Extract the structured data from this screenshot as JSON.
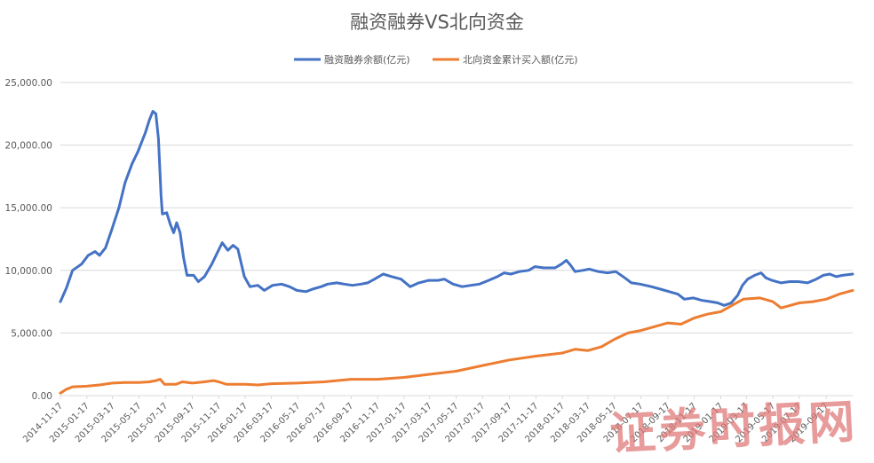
{
  "watermark": "证券时报网",
  "chart_data": {
    "type": "line",
    "title": "融资融券VS北向资金",
    "legend_position": "top",
    "grid": true,
    "ylim": [
      0,
      25000
    ],
    "yticks": [
      "0.00",
      "5,000.00",
      "10,000.00",
      "15,000.00",
      "20,000.00",
      "25,000.00"
    ],
    "xlim": [
      "2014-11-17",
      "2019-11-17"
    ],
    "xticks": [
      "2014-11-17",
      "2015-01-17",
      "2015-03-17",
      "2015-05-17",
      "2015-07-17",
      "2015-09-17",
      "2015-11-17",
      "2016-01-17",
      "2016-03-17",
      "2016-05-17",
      "2016-07-17",
      "2016-09-17",
      "2016-11-17",
      "2017-01-17",
      "2017-03-17",
      "2017-05-17",
      "2017-07-17",
      "2017-09-17",
      "2017-11-17",
      "2018-01-17",
      "2018-03-17",
      "2018-05-17",
      "2018-07-17",
      "2018-09-17",
      "2018-11-17",
      "2019-01-17",
      "2019-03-17",
      "2019-05-17",
      "2019-07-17",
      "2019-09-17"
    ],
    "series": [
      {
        "name": "融资融券余额(亿元)",
        "color": "#4472c4",
        "points": [
          [
            "2014-11-17",
            7500
          ],
          [
            "2014-12-01",
            8600
          ],
          [
            "2014-12-15",
            10000
          ],
          [
            "2015-01-05",
            10500
          ],
          [
            "2015-01-20",
            11200
          ],
          [
            "2015-02-05",
            11500
          ],
          [
            "2015-02-15",
            11200
          ],
          [
            "2015-03-01",
            11800
          ],
          [
            "2015-03-15",
            13200
          ],
          [
            "2015-04-01",
            15000
          ],
          [
            "2015-04-15",
            17000
          ],
          [
            "2015-05-01",
            18500
          ],
          [
            "2015-05-15",
            19500
          ],
          [
            "2015-06-01",
            21000
          ],
          [
            "2015-06-10",
            22000
          ],
          [
            "2015-06-18",
            22700
          ],
          [
            "2015-06-25",
            22500
          ],
          [
            "2015-07-01",
            20500
          ],
          [
            "2015-07-07",
            16000
          ],
          [
            "2015-07-10",
            14500
          ],
          [
            "2015-07-20",
            14600
          ],
          [
            "2015-07-28",
            13700
          ],
          [
            "2015-08-05",
            13000
          ],
          [
            "2015-08-12",
            13800
          ],
          [
            "2015-08-20",
            13000
          ],
          [
            "2015-08-28",
            11000
          ],
          [
            "2015-09-05",
            9600
          ],
          [
            "2015-09-20",
            9600
          ],
          [
            "2015-10-01",
            9100
          ],
          [
            "2015-10-15",
            9500
          ],
          [
            "2015-11-01",
            10500
          ],
          [
            "2015-11-15",
            11500
          ],
          [
            "2015-11-25",
            12200
          ],
          [
            "2015-12-08",
            11600
          ],
          [
            "2015-12-20",
            12000
          ],
          [
            "2015-12-31",
            11700
          ],
          [
            "2016-01-15",
            9500
          ],
          [
            "2016-01-28",
            8700
          ],
          [
            "2016-02-15",
            8800
          ],
          [
            "2016-03-01",
            8400
          ],
          [
            "2016-03-20",
            8800
          ],
          [
            "2016-04-10",
            8900
          ],
          [
            "2016-04-28",
            8700
          ],
          [
            "2016-05-15",
            8400
          ],
          [
            "2016-06-05",
            8300
          ],
          [
            "2016-06-20",
            8500
          ],
          [
            "2016-07-10",
            8700
          ],
          [
            "2016-07-25",
            8900
          ],
          [
            "2016-08-15",
            9000
          ],
          [
            "2016-09-01",
            8900
          ],
          [
            "2016-09-20",
            8800
          ],
          [
            "2016-10-10",
            8900
          ],
          [
            "2016-10-25",
            9000
          ],
          [
            "2016-11-10",
            9300
          ],
          [
            "2016-11-30",
            9700
          ],
          [
            "2016-12-20",
            9500
          ],
          [
            "2017-01-10",
            9300
          ],
          [
            "2017-01-31",
            8700
          ],
          [
            "2017-02-20",
            9000
          ],
          [
            "2017-03-15",
            9200
          ],
          [
            "2017-04-05",
            9200
          ],
          [
            "2017-04-20",
            9300
          ],
          [
            "2017-05-10",
            8900
          ],
          [
            "2017-05-31",
            8700
          ],
          [
            "2017-06-20",
            8800
          ],
          [
            "2017-07-10",
            8900
          ],
          [
            "2017-07-31",
            9200
          ],
          [
            "2017-08-20",
            9500
          ],
          [
            "2017-09-05",
            9800
          ],
          [
            "2017-09-20",
            9700
          ],
          [
            "2017-10-10",
            9900
          ],
          [
            "2017-10-31",
            10000
          ],
          [
            "2017-11-15",
            10300
          ],
          [
            "2017-12-05",
            10200
          ],
          [
            "2017-12-31",
            10200
          ],
          [
            "2018-01-15",
            10500
          ],
          [
            "2018-01-26",
            10800
          ],
          [
            "2018-02-05",
            10400
          ],
          [
            "2018-02-15",
            9900
          ],
          [
            "2018-03-05",
            10000
          ],
          [
            "2018-03-20",
            10100
          ],
          [
            "2018-04-10",
            9900
          ],
          [
            "2018-05-01",
            9800
          ],
          [
            "2018-05-20",
            9900
          ],
          [
            "2018-06-10",
            9400
          ],
          [
            "2018-06-25",
            9000
          ],
          [
            "2018-07-15",
            8900
          ],
          [
            "2018-08-10",
            8700
          ],
          [
            "2018-08-31",
            8500
          ],
          [
            "2018-09-20",
            8300
          ],
          [
            "2018-10-10",
            8100
          ],
          [
            "2018-10-25",
            7700
          ],
          [
            "2018-11-15",
            7800
          ],
          [
            "2018-12-05",
            7600
          ],
          [
            "2018-12-25",
            7500
          ],
          [
            "2019-01-10",
            7400
          ],
          [
            "2019-01-25",
            7200
          ],
          [
            "2019-02-10",
            7400
          ],
          [
            "2019-02-25",
            8000
          ],
          [
            "2019-03-08",
            8800
          ],
          [
            "2019-03-20",
            9300
          ],
          [
            "2019-04-05",
            9600
          ],
          [
            "2019-04-20",
            9800
          ],
          [
            "2019-05-01",
            9400
          ],
          [
            "2019-05-15",
            9200
          ],
          [
            "2019-06-05",
            9000
          ],
          [
            "2019-06-25",
            9100
          ],
          [
            "2019-07-15",
            9100
          ],
          [
            "2019-08-05",
            9000
          ],
          [
            "2019-08-25",
            9300
          ],
          [
            "2019-09-10",
            9600
          ],
          [
            "2019-09-25",
            9700
          ],
          [
            "2019-10-10",
            9500
          ],
          [
            "2019-10-25",
            9600
          ],
          [
            "2019-11-17",
            9700
          ]
        ]
      },
      {
        "name": "北向资金累计买入额(亿元)",
        "color": "#ed7d31",
        "points": [
          [
            "2014-11-17",
            200
          ],
          [
            "2014-12-01",
            500
          ],
          [
            "2014-12-15",
            700
          ],
          [
            "2015-01-17",
            750
          ],
          [
            "2015-02-15",
            850
          ],
          [
            "2015-03-17",
            1000
          ],
          [
            "2015-04-15",
            1050
          ],
          [
            "2015-05-17",
            1050
          ],
          [
            "2015-06-10",
            1100
          ],
          [
            "2015-06-25",
            1200
          ],
          [
            "2015-07-05",
            1300
          ],
          [
            "2015-07-15",
            900
          ],
          [
            "2015-08-10",
            900
          ],
          [
            "2015-08-25",
            1100
          ],
          [
            "2015-09-17",
            1000
          ],
          [
            "2015-10-15",
            1100
          ],
          [
            "2015-11-05",
            1200
          ],
          [
            "2015-11-17",
            1100
          ],
          [
            "2015-12-05",
            900
          ],
          [
            "2016-01-17",
            900
          ],
          [
            "2016-02-15",
            850
          ],
          [
            "2016-03-17",
            950
          ],
          [
            "2016-05-17",
            1000
          ],
          [
            "2016-07-17",
            1100
          ],
          [
            "2016-09-17",
            1300
          ],
          [
            "2016-11-17",
            1300
          ],
          [
            "2017-01-17",
            1450
          ],
          [
            "2017-03-17",
            1700
          ],
          [
            "2017-05-17",
            1950
          ],
          [
            "2017-07-17",
            2400
          ],
          [
            "2017-09-17",
            2850
          ],
          [
            "2017-11-17",
            3150
          ],
          [
            "2018-01-17",
            3400
          ],
          [
            "2018-02-15",
            3700
          ],
          [
            "2018-03-17",
            3600
          ],
          [
            "2018-04-17",
            3900
          ],
          [
            "2018-05-17",
            4500
          ],
          [
            "2018-06-17",
            5000
          ],
          [
            "2018-07-17",
            5200
          ],
          [
            "2018-08-17",
            5500
          ],
          [
            "2018-09-17",
            5800
          ],
          [
            "2018-10-17",
            5700
          ],
          [
            "2018-11-17",
            6200
          ],
          [
            "2018-12-17",
            6500
          ],
          [
            "2019-01-17",
            6700
          ],
          [
            "2019-02-17",
            7300
          ],
          [
            "2019-03-10",
            7700
          ],
          [
            "2019-04-17",
            7800
          ],
          [
            "2019-05-17",
            7500
          ],
          [
            "2019-06-05",
            7000
          ],
          [
            "2019-07-17",
            7400
          ],
          [
            "2019-08-17",
            7500
          ],
          [
            "2019-09-17",
            7700
          ],
          [
            "2019-10-17",
            8100
          ],
          [
            "2019-11-17",
            8400
          ]
        ]
      }
    ]
  }
}
